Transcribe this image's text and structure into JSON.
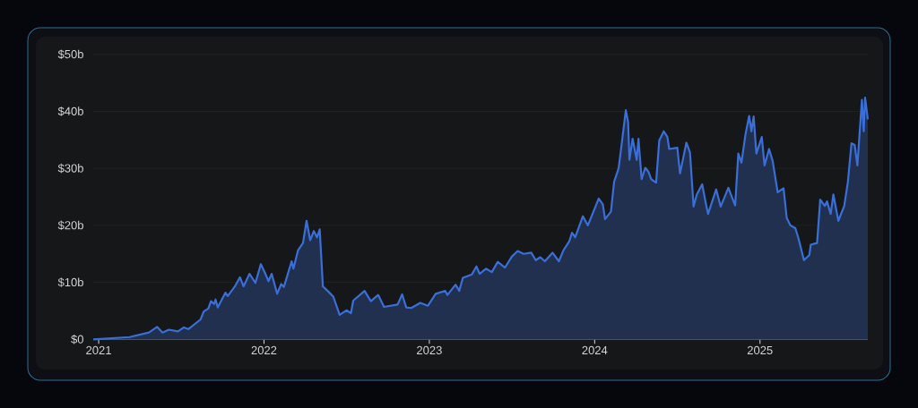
{
  "chart_data": {
    "type": "area",
    "grid": "y",
    "xlim": [
      "2020-12-20",
      "2025-08-27"
    ],
    "xticks": [
      "2021",
      "2022",
      "2023",
      "2024",
      "2025"
    ],
    "ylim": [
      0,
      50
    ],
    "yticks": [
      {
        "value": 0,
        "label": "$0"
      },
      {
        "value": 10,
        "label": "$10b"
      },
      {
        "value": 20,
        "label": "$20b"
      },
      {
        "value": 30,
        "label": "$30b"
      },
      {
        "value": 40,
        "label": "$40b"
      },
      {
        "value": 50,
        "label": "$50b"
      }
    ],
    "series": [
      {
        "color": "#3a6fd8",
        "x": [
          "2020-12-20",
          "2021-03-10",
          "2021-04-22",
          "2021-05-10",
          "2021-05-22",
          "2021-06-05",
          "2021-06-25",
          "2021-07-08",
          "2021-07-18",
          "2021-08-14",
          "2021-08-21",
          "2021-08-31",
          "2021-09-06",
          "2021-09-13",
          "2021-09-16",
          "2021-09-21",
          "2021-10-08",
          "2021-10-13",
          "2021-10-28",
          "2021-11-09",
          "2021-11-17",
          "2021-11-30",
          "2021-12-13",
          "2021-12-25",
          "2022-01-03",
          "2022-01-11",
          "2022-01-18",
          "2022-01-30",
          "2022-02-08",
          "2022-02-14",
          "2022-03-03",
          "2022-03-07",
          "2022-03-17",
          "2022-03-28",
          "2022-04-05",
          "2022-04-13",
          "2022-04-21",
          "2022-04-28",
          "2022-05-04",
          "2022-05-11",
          "2022-05-24",
          "2022-06-03",
          "2022-06-17",
          "2022-07-02",
          "2022-07-12",
          "2022-07-17",
          "2022-08-11",
          "2022-08-25",
          "2022-09-10",
          "2022-09-23",
          "2022-10-23",
          "2022-11-02",
          "2022-11-11",
          "2022-11-22",
          "2022-12-12",
          "2022-12-29",
          "2023-01-15",
          "2023-02-05",
          "2023-02-10",
          "2023-02-28",
          "2023-03-08",
          "2023-03-16",
          "2023-04-05",
          "2023-04-15",
          "2023-04-22",
          "2023-05-06",
          "2023-05-19",
          "2023-06-01",
          "2023-06-17",
          "2023-07-02",
          "2023-07-15",
          "2023-07-28",
          "2023-08-14",
          "2023-08-24",
          "2023-09-03",
          "2023-09-13",
          "2023-09-30",
          "2023-10-14",
          "2023-10-24",
          "2023-11-06",
          "2023-11-12",
          "2023-11-19",
          "2023-12-06",
          "2023-12-17",
          "2024-01-10",
          "2024-01-19",
          "2024-01-24",
          "2024-02-06",
          "2024-02-13",
          "2024-02-23",
          "2024-03-01",
          "2024-03-10",
          "2024-03-15",
          "2024-03-18",
          "2024-03-25",
          "2024-03-29",
          "2024-04-03",
          "2024-04-07",
          "2024-04-14",
          "2024-04-22",
          "2024-04-29",
          "2024-05-05",
          "2024-05-16",
          "2024-05-23",
          "2024-06-02",
          "2024-06-10",
          "2024-06-14",
          "2024-07-02",
          "2024-07-08",
          "2024-07-22",
          "2024-07-30",
          "2024-08-07",
          "2024-08-14",
          "2024-08-26",
          "2024-09-03",
          "2024-09-08",
          "2024-09-26",
          "2024-10-06",
          "2024-10-23",
          "2024-11-07",
          "2024-11-14",
          "2024-11-21",
          "2024-11-30",
          "2024-12-08",
          "2024-12-13",
          "2024-12-18",
          "2024-12-24",
          "2025-01-05",
          "2025-01-11",
          "2025-01-21",
          "2025-01-29",
          "2025-02-09",
          "2025-02-22",
          "2025-03-01",
          "2025-03-09",
          "2025-03-20",
          "2025-03-27",
          "2025-04-08",
          "2025-04-20",
          "2025-04-23",
          "2025-05-07",
          "2025-05-14",
          "2025-05-24",
          "2025-05-29",
          "2025-06-06",
          "2025-06-12",
          "2025-06-23",
          "2025-07-06",
          "2025-07-14",
          "2025-07-22",
          "2025-07-29",
          "2025-08-04",
          "2025-08-14",
          "2025-08-18",
          "2025-08-21",
          "2025-08-27"
        ],
        "values": [
          0,
          0.4,
          1.2,
          2.2,
          1.2,
          1.7,
          1.4,
          2.1,
          1.8,
          3.5,
          4.9,
          5.4,
          6.7,
          6.2,
          7.0,
          5.6,
          8.2,
          7.6,
          9.2,
          10.9,
          9.3,
          11.5,
          9.9,
          13.2,
          11.7,
          10.2,
          11.5,
          8.0,
          9.7,
          9.2,
          13.7,
          12.4,
          15.6,
          16.9,
          20.8,
          17.4,
          19.0,
          17.9,
          19.3,
          9.3,
          8.3,
          7.5,
          4.3,
          5.1,
          4.6,
          6.8,
          8.5,
          6.7,
          7.8,
          5.7,
          6.1,
          7.9,
          5.6,
          5.5,
          6.4,
          5.9,
          8.0,
          8.5,
          7.8,
          9.6,
          8.5,
          10.8,
          11.4,
          12.8,
          11.5,
          12.4,
          11.8,
          13.6,
          12.6,
          14.5,
          15.5,
          15.0,
          15.2,
          13.9,
          14.4,
          13.7,
          15.2,
          13.7,
          15.6,
          17.2,
          18.7,
          17.9,
          21.6,
          20.0,
          24.7,
          23.7,
          21.1,
          22.4,
          27.6,
          30.0,
          34.4,
          40.2,
          38.1,
          31.5,
          35.2,
          33.6,
          31.5,
          35.2,
          28.1,
          30.1,
          29.4,
          28.1,
          27.5,
          34.9,
          36.5,
          35.5,
          33.4,
          33.6,
          29.1,
          34.5,
          32.8,
          23.3,
          25.4,
          27.2,
          23.9,
          22.0,
          26.3,
          23.3,
          26.6,
          23.5,
          32.6,
          31.0,
          36.0,
          39.2,
          36.5,
          39.1,
          32.6,
          35.5,
          30.5,
          33.4,
          31.3,
          25.8,
          26.5,
          21.3,
          20.0,
          19.5,
          17.7,
          13.9,
          14.8,
          16.6,
          16.9,
          24.5,
          23.4,
          24.2,
          22.0,
          25.4,
          20.8,
          23.4,
          27.6,
          34.4,
          34.1,
          30.5,
          42.0,
          36.5,
          42.4,
          38.6
        ]
      }
    ]
  }
}
